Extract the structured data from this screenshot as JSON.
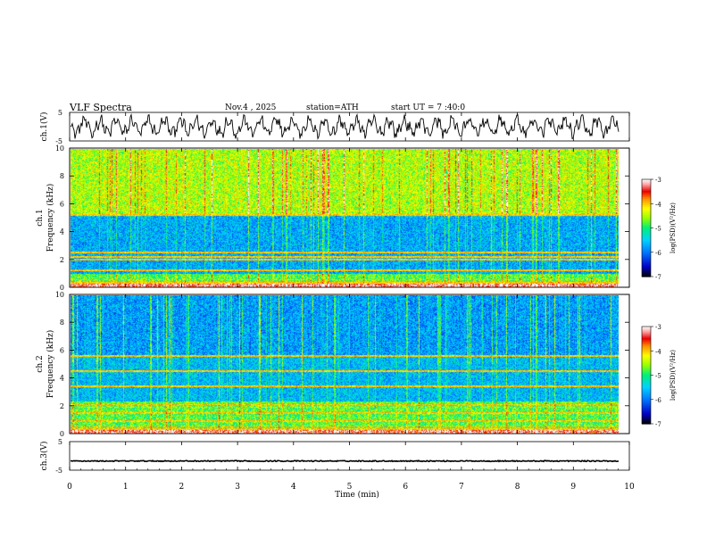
{
  "header": {
    "title": "VLF  Spectra",
    "date": "Nov.4  , 2025",
    "station": "station=ATH",
    "start": "start  UT  =   7 :40:0"
  },
  "colorbar": {
    "label": "log(PSD)(V²/Hz)",
    "ticks": [
      "-3",
      "-4",
      "-5",
      "-6",
      "-7"
    ],
    "colors": [
      "#000000",
      "#0000cc",
      "#0088ff",
      "#00ccff",
      "#00ff66",
      "#99ff00",
      "#ffff00",
      "#ff9900",
      "#ff0000",
      "#ffaaaa",
      "#ffffff"
    ]
  },
  "chart_data": [
    {
      "type": "line",
      "name": "ch1-waveform",
      "ylabel": "ch.1(V)",
      "ylim": [
        -5,
        5
      ],
      "yticks": [
        "5",
        "-5"
      ],
      "xlim": [
        0,
        10
      ],
      "data_extent_min": 9.82,
      "amplitude_range": [
        -4.2,
        4.2
      ],
      "description_values": {
        "min": -4.5,
        "max": 4.5
      }
    },
    {
      "type": "heatmap",
      "name": "ch1-spectrogram",
      "ylabel_top": "ch.1",
      "ylabel": "Frequency  (kHz)",
      "ylim": [
        0,
        10
      ],
      "yticks": [
        "0",
        "2",
        "4",
        "6",
        "8",
        "10"
      ],
      "xlim": [
        0,
        9.82
      ],
      "colorscale": "log(PSD)(V²/Hz)",
      "zrange": [
        -7,
        -3
      ],
      "strong_lines_khz": [
        0.3,
        0.55,
        1.2,
        2.0,
        2.2,
        2.5,
        5.25
      ],
      "noise_band_khz": [
        1.0,
        5.3
      ],
      "noise_level": -5.8,
      "upper_level": -4.6
    },
    {
      "type": "heatmap",
      "name": "ch2-spectrogram",
      "ylabel_top": "ch.2",
      "ylabel": "Frequency  (kHz)",
      "ylim": [
        0,
        10
      ],
      "yticks": [
        "0",
        "2",
        "4",
        "6",
        "8",
        "10"
      ],
      "xlim": [
        0,
        9.82
      ],
      "colorscale": "log(PSD)(V²/Hz)",
      "zrange": [
        -7,
        -3
      ],
      "strong_lines_khz": [
        0.3,
        0.55,
        0.9,
        1.5,
        1.9,
        2.1,
        3.4,
        4.5,
        5.6
      ],
      "noise_band_khz": [
        2.3,
        5.6
      ],
      "noise_level": -5.7,
      "upper_level": -5.9
    },
    {
      "type": "line",
      "name": "ch3-waveform",
      "ylabel": "ch.3(V)",
      "ylim": [
        -5,
        5
      ],
      "yticks": [
        "5",
        "-5"
      ],
      "xlim": [
        0,
        10
      ],
      "mean_value": -1.8,
      "data_extent_min": 9.82
    }
  ],
  "xaxis": {
    "label": "Time  (min)",
    "xlim": [
      0,
      10
    ],
    "ticks": [
      "0",
      "1",
      "2",
      "3",
      "4",
      "5",
      "6",
      "7",
      "8",
      "9",
      "10"
    ]
  }
}
